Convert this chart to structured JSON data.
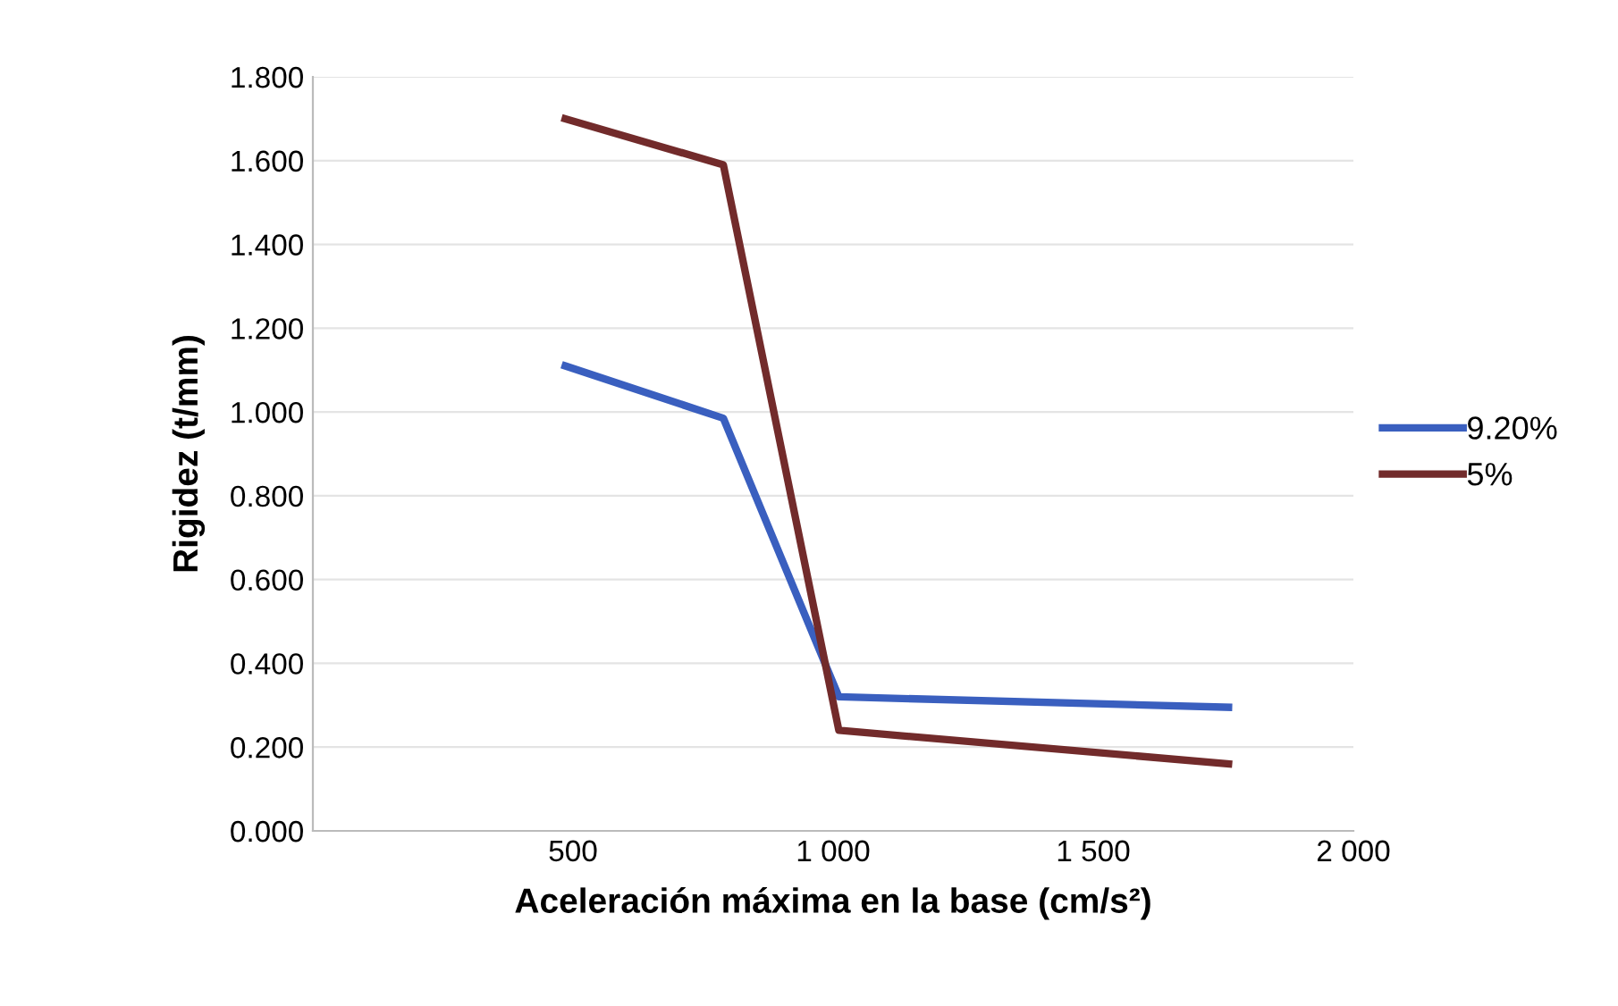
{
  "chart_data": {
    "type": "line",
    "xlabel": "Aceleración máxima en la base (cm/s²)",
    "ylabel": "Rigidez (t/mm)",
    "xlim": [
      0,
      2000
    ],
    "xticks": [
      {
        "value": 0,
        "label": null
      },
      500,
      {
        "value": 1000,
        "label": "1 000"
      },
      {
        "value": 1500,
        "label": "1 500"
      },
      {
        "value": 2000,
        "label": "2 000"
      }
    ],
    "ylim": [
      0,
      1.8
    ],
    "yticks": [
      {
        "value": 0,
        "label": "0.000"
      },
      {
        "value": 0.2,
        "label": "0.200"
      },
      {
        "value": 0.4,
        "label": "0.400"
      },
      {
        "value": 0.6,
        "label": "0.600"
      },
      {
        "value": 0.8,
        "label": "0.800"
      },
      {
        "value": 1.0,
        "label": "1.000"
      },
      {
        "value": 1.2,
        "label": "1.200"
      },
      {
        "value": 1.4,
        "label": "1.400"
      },
      {
        "value": 1.6,
        "label": "1.600"
      },
      {
        "value": 1.8,
        "label": "1.800"
      }
    ],
    "grid": "y",
    "legend": "right",
    "x": [
      485,
      789,
      1011,
      1760
    ],
    "series": [
      {
        "name": "9.20%",
        "color": "#3a5fbf",
        "values": [
          1.11,
          0.985,
          0.32,
          0.295
        ]
      },
      {
        "name": "5%",
        "color": "#722b2b",
        "values": [
          1.7,
          1.59,
          0.24,
          0.16
        ]
      }
    ]
  }
}
